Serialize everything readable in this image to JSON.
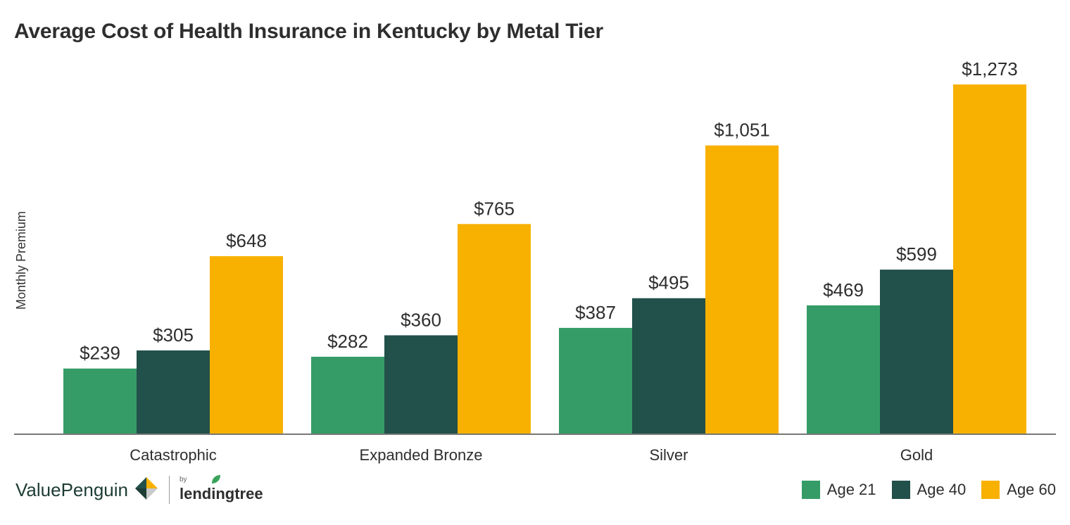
{
  "chart_data": {
    "type": "bar",
    "title": "Average Cost of Health Insurance in Kentucky by Metal Tier",
    "ylabel": "Monthly Premium",
    "xlabel": "",
    "categories": [
      "Catastrophic",
      "Expanded Bronze",
      "Silver",
      "Gold"
    ],
    "series": [
      {
        "name": "Age 21",
        "color": "#359c68",
        "values": [
          239,
          282,
          387,
          469
        ],
        "labels": [
          "$239",
          "$282",
          "$387",
          "$469"
        ]
      },
      {
        "name": "Age 40",
        "color": "#22504a",
        "values": [
          305,
          360,
          495,
          599
        ],
        "labels": [
          "$305",
          "$360",
          "$495",
          "$599"
        ]
      },
      {
        "name": "Age 60",
        "color": "#f8b100",
        "values": [
          648,
          765,
          1051,
          1273
        ],
        "labels": [
          "$648",
          "$765",
          "$1,051",
          "$1,273"
        ]
      }
    ],
    "ylim": [
      0,
      1273
    ],
    "grid": false,
    "legend_position": "bottom-right"
  },
  "branding": {
    "valuepenguin": "ValuePenguin",
    "by": "by",
    "lendingtree": "lendingtree"
  }
}
